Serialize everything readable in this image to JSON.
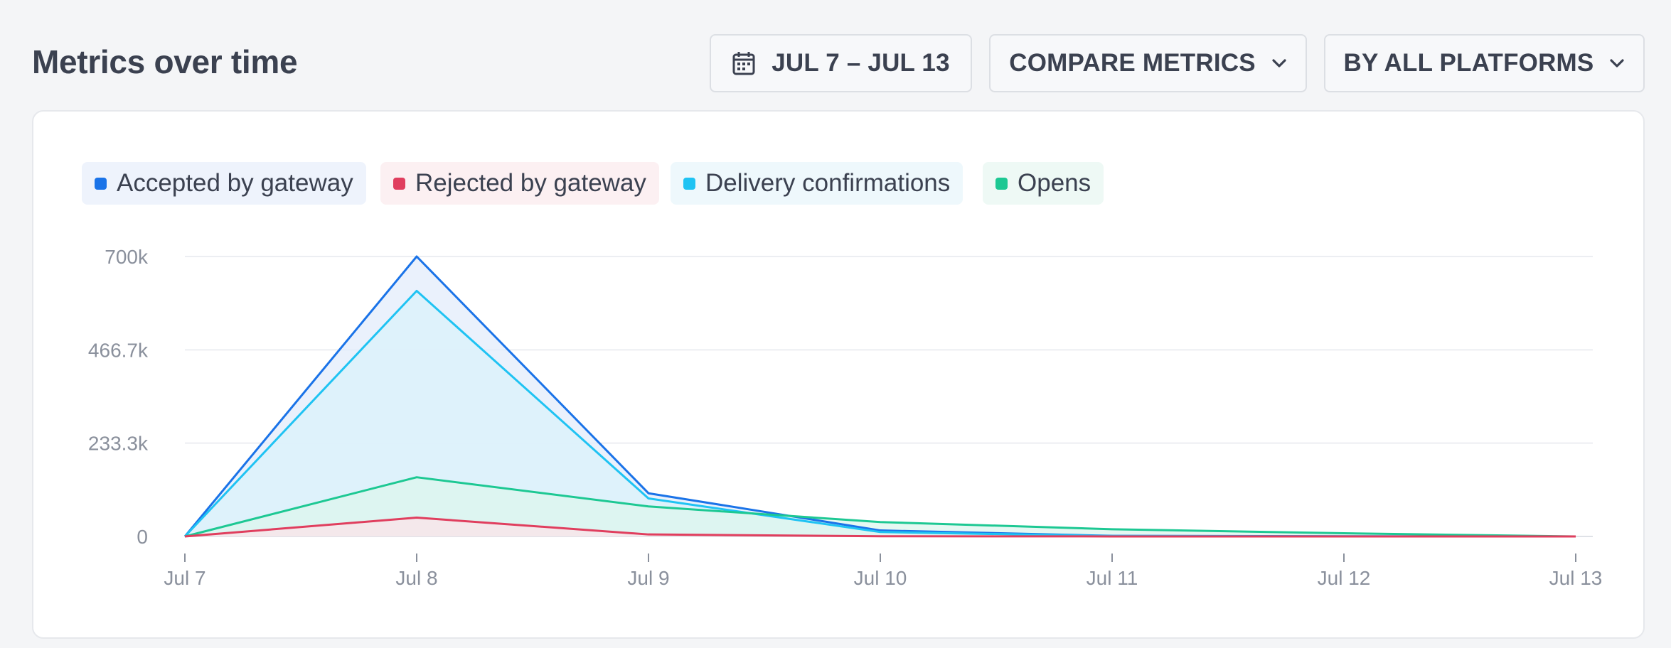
{
  "header": {
    "title": "Metrics over time",
    "date_range": "JUL 7 – JUL 13",
    "compare_label": "COMPARE METRICS",
    "platform_label": "BY ALL PLATFORMS",
    "icons": {
      "date": "calendar-icon",
      "dropdown": "chevron-down-icon"
    }
  },
  "chart_data": {
    "type": "area",
    "categories": [
      "Jul 7",
      "Jul 8",
      "Jul 9",
      "Jul 10",
      "Jul 11",
      "Jul 12",
      "Jul 13"
    ],
    "y_ticks": [
      {
        "value": 0,
        "label": "0"
      },
      {
        "value": 233333,
        "label": "233.3k"
      },
      {
        "value": 466667,
        "label": "466.7k"
      },
      {
        "value": 700000,
        "label": "700k"
      }
    ],
    "ylim": [
      0,
      700000
    ],
    "grid": true,
    "legend_position": "top-left",
    "series": [
      {
        "name": "Accepted by gateway",
        "color": "#1a73e8",
        "fill": "#e3ecfb",
        "chip_bg": "#eef3fc",
        "values": [
          0,
          700000,
          108000,
          15000,
          1500,
          500,
          0
        ]
      },
      {
        "name": "Rejected by gateway",
        "color": "#e03e5e",
        "fill": "#fbe3e8",
        "chip_bg": "#fcf0f2",
        "values": [
          0,
          47000,
          5000,
          500,
          100,
          50,
          0
        ]
      },
      {
        "name": "Delivery confirmations",
        "color": "#1fc3f3",
        "fill": "#d9f1fb",
        "chip_bg": "#eef8fc",
        "values": [
          0,
          614000,
          95000,
          11000,
          1000,
          300,
          0
        ]
      },
      {
        "name": "Opens",
        "color": "#1dc893",
        "fill": "#dcf5ee",
        "chip_bg": "#eef9f5",
        "values": [
          0,
          148000,
          75000,
          36000,
          18000,
          8000,
          0
        ]
      }
    ]
  }
}
